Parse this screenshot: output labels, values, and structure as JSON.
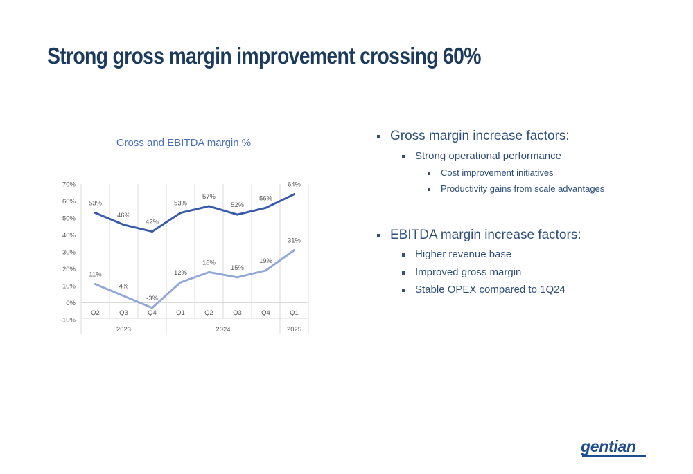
{
  "slide": {
    "title": "Strong gross margin improvement crossing 60%",
    "logo_text": "gentian"
  },
  "bullets": {
    "gross": {
      "heading": "Gross margin increase factors:",
      "sub": "Strong operational performance",
      "subsub": [
        "Cost improvement initiatives",
        "Productivity gains from scale advantages"
      ]
    },
    "ebitda": {
      "heading": "EBITDA margin increase factors:",
      "items": [
        "Higher revenue base",
        "Improved gross margin",
        "Stable OPEX compared to 1Q24"
      ]
    }
  },
  "colors": {
    "title": "#1b3a5c",
    "bullet_text": "#2f4f7a",
    "chart_title": "#4a6fb5",
    "gross_line": "#3a5ba8",
    "ebitda_line": "#93a8d6",
    "grid": "#d9d9d9",
    "axis_text": "#595959",
    "logo": "#1f4e8c"
  },
  "chart_data": {
    "type": "line",
    "title": "Gross and EBITDA margin %",
    "categories": [
      "Q2",
      "Q3",
      "Q4",
      "Q1",
      "Q2",
      "Q3",
      "Q4",
      "Q1"
    ],
    "category_groups": [
      {
        "label": "2023",
        "span": 3
      },
      {
        "label": "2024",
        "span": 4
      },
      {
        "label": "2025",
        "span": 1
      }
    ],
    "series": [
      {
        "values": [
          53,
          46,
          42,
          53,
          57,
          52,
          56,
          64
        ],
        "labels": [
          "53%",
          "46%",
          "42%",
          "53%",
          "57%",
          "52%",
          "56%",
          "64%"
        ]
      },
      {
        "values": [
          11,
          4,
          -3,
          12,
          18,
          15,
          19,
          31
        ],
        "labels": [
          "11%",
          "4%",
          "-3%",
          "12%",
          "18%",
          "15%",
          "19%",
          "31%"
        ]
      }
    ],
    "ylim": [
      -10,
      70
    ],
    "yticks": [
      -10,
      0,
      10,
      20,
      30,
      40,
      50,
      60,
      70
    ],
    "ytick_labels": [
      "-10%",
      "0%",
      "10%",
      "20%",
      "30%",
      "40%",
      "50%",
      "60%",
      "70%"
    ],
    "grid": "vertical",
    "legend": "none"
  }
}
